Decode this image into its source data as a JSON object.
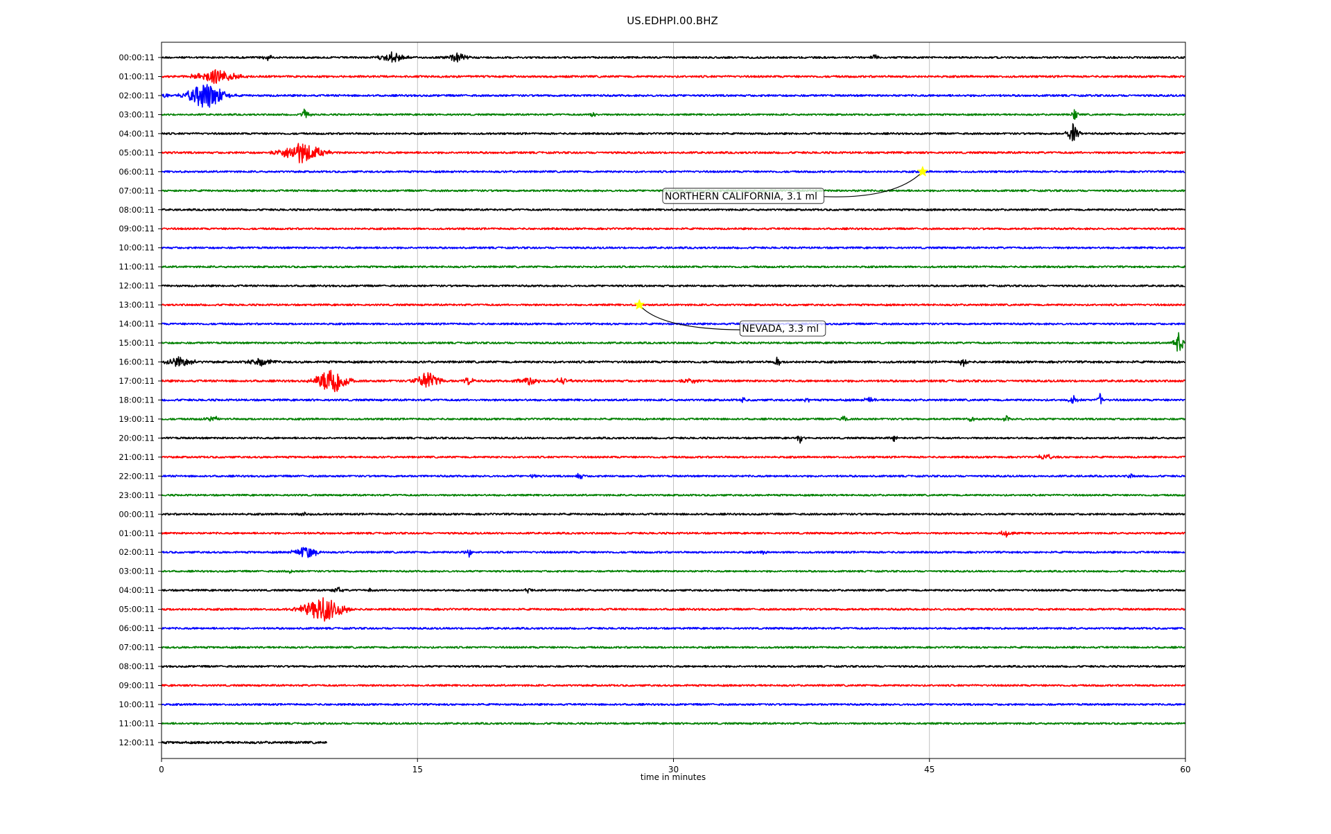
{
  "chart_data": {
    "type": "line",
    "title": "US.EDHPI.00.BHZ",
    "xlabel": "time in minutes",
    "ylabel": "",
    "xlim": [
      0,
      60
    ],
    "x_ticks": [
      0,
      15,
      30,
      45,
      60
    ],
    "grid": {
      "x": true,
      "y": false
    },
    "row_colors": [
      "#000000",
      "#ff0000",
      "#0000ff",
      "#008000"
    ],
    "row_labels": [
      "00:00:11",
      "01:00:11",
      "02:00:11",
      "03:00:11",
      "04:00:11",
      "05:00:11",
      "06:00:11",
      "07:00:11",
      "08:00:11",
      "09:00:11",
      "10:00:11",
      "11:00:11",
      "12:00:11",
      "13:00:11",
      "14:00:11",
      "15:00:11",
      "16:00:11",
      "17:00:11",
      "18:00:11",
      "19:00:11",
      "20:00:11",
      "21:00:11",
      "22:00:11",
      "23:00:11",
      "00:00:11",
      "01:00:11",
      "02:00:11",
      "03:00:11",
      "04:00:11",
      "05:00:11",
      "06:00:11",
      "07:00:11",
      "08:00:11",
      "09:00:11",
      "10:00:11",
      "11:00:11",
      "12:00:11"
    ],
    "last_row_end_minute": 9.7,
    "traces": [
      {
        "row": 0,
        "noise": 1.3,
        "bursts": [
          {
            "t": 6.2,
            "amp": 4,
            "dur": 0.8
          },
          {
            "t": 13.6,
            "amp": 9,
            "dur": 1.5
          },
          {
            "t": 17.3,
            "amp": 7,
            "dur": 1.2
          },
          {
            "t": 41.8,
            "amp": 5,
            "dur": 0.6
          }
        ]
      },
      {
        "row": 1,
        "noise": 1.4,
        "bursts": [
          {
            "t": 3.2,
            "amp": 11,
            "dur": 2.6
          }
        ]
      },
      {
        "row": 2,
        "noise": 1.4,
        "bursts": [
          {
            "t": 2.6,
            "amp": 22,
            "dur": 2.2
          },
          {
            "t": 0.2,
            "amp": 4,
            "dur": 0.5
          }
        ]
      },
      {
        "row": 3,
        "noise": 1.2,
        "bursts": [
          {
            "t": 8.4,
            "amp": 8,
            "dur": 0.6
          },
          {
            "t": 25.3,
            "amp": 6,
            "dur": 0.3
          },
          {
            "t": 53.5,
            "amp": 8,
            "dur": 0.4
          }
        ]
      },
      {
        "row": 4,
        "noise": 1.3,
        "bursts": [
          {
            "t": 53.4,
            "amp": 14,
            "dur": 0.7
          }
        ]
      },
      {
        "row": 5,
        "noise": 1.4,
        "bursts": [
          {
            "t": 8.2,
            "amp": 16,
            "dur": 2.6
          }
        ]
      },
      {
        "row": 6,
        "noise": 1.3,
        "bursts": []
      },
      {
        "row": 7,
        "noise": 1.3,
        "bursts": []
      },
      {
        "row": 8,
        "noise": 1.3,
        "bursts": []
      },
      {
        "row": 9,
        "noise": 1.3,
        "bursts": []
      },
      {
        "row": 10,
        "noise": 1.3,
        "bursts": []
      },
      {
        "row": 11,
        "noise": 1.3,
        "bursts": []
      },
      {
        "row": 12,
        "noise": 1.3,
        "bursts": []
      },
      {
        "row": 13,
        "noise": 1.3,
        "bursts": []
      },
      {
        "row": 14,
        "noise": 1.3,
        "bursts": []
      },
      {
        "row": 15,
        "noise": 1.3,
        "bursts": [
          {
            "t": 59.6,
            "amp": 16,
            "dur": 0.6
          }
        ]
      },
      {
        "row": 16,
        "noise": 1.5,
        "bursts": [
          {
            "t": 1.0,
            "amp": 7,
            "dur": 2.0
          },
          {
            "t": 5.8,
            "amp": 6,
            "dur": 1.5
          },
          {
            "t": 36.1,
            "amp": 9,
            "dur": 0.4
          },
          {
            "t": 47.0,
            "amp": 7,
            "dur": 0.6
          }
        ]
      },
      {
        "row": 17,
        "noise": 1.5,
        "bursts": [
          {
            "t": 10.0,
            "amp": 24,
            "dur": 1.8
          },
          {
            "t": 15.6,
            "amp": 14,
            "dur": 1.5
          },
          {
            "t": 18.0,
            "amp": 6,
            "dur": 0.6
          },
          {
            "t": 21.5,
            "amp": 7,
            "dur": 1.3
          },
          {
            "t": 23.5,
            "amp": 5,
            "dur": 1.0
          },
          {
            "t": 31.0,
            "amp": 4,
            "dur": 1.2
          }
        ]
      },
      {
        "row": 18,
        "noise": 1.4,
        "bursts": [
          {
            "t": 34.1,
            "amp": 5,
            "dur": 0.3
          },
          {
            "t": 37.8,
            "amp": 4,
            "dur": 0.5
          },
          {
            "t": 41.5,
            "amp": 5,
            "dur": 0.6
          },
          {
            "t": 53.4,
            "amp": 8,
            "dur": 0.6
          },
          {
            "t": 55.0,
            "amp": 10,
            "dur": 0.3
          }
        ]
      },
      {
        "row": 19,
        "noise": 1.3,
        "bursts": [
          {
            "t": 3.0,
            "amp": 4,
            "dur": 1.2
          },
          {
            "t": 40.0,
            "amp": 5,
            "dur": 0.6
          },
          {
            "t": 47.5,
            "amp": 5,
            "dur": 0.5
          },
          {
            "t": 49.5,
            "amp": 5,
            "dur": 0.4
          }
        ]
      },
      {
        "row": 20,
        "noise": 1.3,
        "bursts": [
          {
            "t": 37.4,
            "amp": 8,
            "dur": 0.3
          },
          {
            "t": 43.0,
            "amp": 7,
            "dur": 0.5
          }
        ]
      },
      {
        "row": 21,
        "noise": 1.3,
        "bursts": [
          {
            "t": 51.8,
            "amp": 5,
            "dur": 1.0
          }
        ]
      },
      {
        "row": 22,
        "noise": 1.3,
        "bursts": [
          {
            "t": 21.8,
            "amp": 5,
            "dur": 0.3
          },
          {
            "t": 24.5,
            "amp": 5,
            "dur": 0.5
          },
          {
            "t": 56.8,
            "amp": 4,
            "dur": 0.3
          }
        ]
      },
      {
        "row": 23,
        "noise": 1.2,
        "bursts": []
      },
      {
        "row": 24,
        "noise": 1.3,
        "bursts": [
          {
            "t": 8.4,
            "amp": 3,
            "dur": 0.6
          }
        ]
      },
      {
        "row": 25,
        "noise": 1.3,
        "bursts": [
          {
            "t": 49.5,
            "amp": 5,
            "dur": 0.8
          }
        ]
      },
      {
        "row": 26,
        "noise": 1.3,
        "bursts": [
          {
            "t": 8.5,
            "amp": 10,
            "dur": 1.5
          },
          {
            "t": 18.0,
            "amp": 7,
            "dur": 0.6
          },
          {
            "t": 35.3,
            "amp": 4,
            "dur": 0.4
          }
        ]
      },
      {
        "row": 27,
        "noise": 1.2,
        "bursts": [
          {
            "t": 7.5,
            "amp": 4,
            "dur": 0.3
          }
        ]
      },
      {
        "row": 28,
        "noise": 1.3,
        "bursts": [
          {
            "t": 10.3,
            "amp": 5,
            "dur": 0.6
          },
          {
            "t": 12.2,
            "amp": 4,
            "dur": 0.3
          },
          {
            "t": 21.5,
            "amp": 4,
            "dur": 0.5
          }
        ]
      },
      {
        "row": 29,
        "noise": 1.4,
        "bursts": [
          {
            "t": 9.5,
            "amp": 20,
            "dur": 2.5
          }
        ]
      },
      {
        "row": 30,
        "noise": 1.3,
        "bursts": []
      },
      {
        "row": 31,
        "noise": 1.3,
        "bursts": []
      },
      {
        "row": 32,
        "noise": 1.3,
        "bursts": []
      },
      {
        "row": 33,
        "noise": 1.3,
        "bursts": []
      },
      {
        "row": 34,
        "noise": 1.3,
        "bursts": []
      },
      {
        "row": 35,
        "noise": 1.3,
        "bursts": []
      },
      {
        "row": 36,
        "noise": 1.6,
        "bursts": []
      }
    ],
    "events": [
      {
        "label": "NORTHERN CALIFORNIA, 3.1 ml",
        "row": 6,
        "minute": 44.6
      },
      {
        "label": "NEVADA, 3.3 ml",
        "row": 13,
        "minute": 28.0
      }
    ],
    "event_marker_color": "#ffff00"
  }
}
